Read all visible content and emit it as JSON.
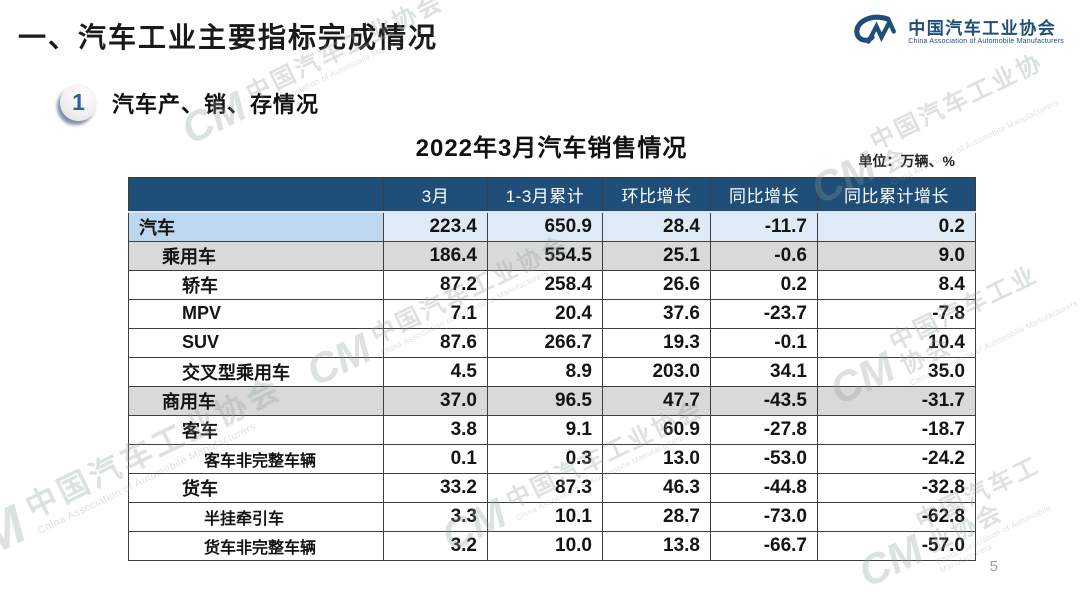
{
  "page": {
    "title": "一、汽车工业主要指标完成情况",
    "page_number": "5"
  },
  "logo": {
    "mark": "CM",
    "name_cn": "中国汽车工业协会",
    "name_en": "China Association of Automobile Manufacturers"
  },
  "section": {
    "number": "1",
    "label": "汽车产、销、存情况"
  },
  "table": {
    "title": "2022年3月汽车销售情况",
    "unit_note": "单位：万辆、%",
    "columns": [
      "",
      "3月",
      "1-3月累计",
      "环比增长",
      "同比增长",
      "同比累计增长"
    ],
    "rows": [
      {
        "label": "汽车",
        "indent": 0,
        "style": "blue",
        "values": [
          "223.4",
          "650.9",
          "28.4",
          "-11.7",
          "0.2"
        ]
      },
      {
        "label": "乘用车",
        "indent": 1,
        "style": "gray",
        "values": [
          "186.4",
          "554.5",
          "25.1",
          "-0.6",
          "9.0"
        ]
      },
      {
        "label": "轿车",
        "indent": 2,
        "style": "white",
        "values": [
          "87.2",
          "258.4",
          "26.6",
          "0.2",
          "8.4"
        ]
      },
      {
        "label": "MPV",
        "indent": 2,
        "style": "white",
        "values": [
          "7.1",
          "20.4",
          "37.6",
          "-23.7",
          "-7.8"
        ]
      },
      {
        "label": "SUV",
        "indent": 2,
        "style": "white",
        "values": [
          "87.6",
          "266.7",
          "19.3",
          "-0.1",
          "10.4"
        ]
      },
      {
        "label": "交叉型乘用车",
        "indent": 2,
        "style": "white",
        "values": [
          "4.5",
          "8.9",
          "203.0",
          "34.1",
          "35.0"
        ]
      },
      {
        "label": "商用车",
        "indent": 1,
        "style": "gray",
        "values": [
          "37.0",
          "96.5",
          "47.7",
          "-43.5",
          "-31.7"
        ]
      },
      {
        "label": "客车",
        "indent": 2,
        "style": "white",
        "values": [
          "3.8",
          "9.1",
          "60.9",
          "-27.8",
          "-18.7"
        ]
      },
      {
        "label": "客车非完整车辆",
        "indent": 3,
        "style": "white",
        "values": [
          "0.1",
          "0.3",
          "13.0",
          "-53.0",
          "-24.2"
        ]
      },
      {
        "label": "货车",
        "indent": 2,
        "style": "white",
        "values": [
          "33.2",
          "87.3",
          "46.3",
          "-44.8",
          "-32.8"
        ]
      },
      {
        "label": "半挂牵引车",
        "indent": 3,
        "style": "white",
        "values": [
          "3.3",
          "10.1",
          "28.7",
          "-73.0",
          "-62.8"
        ]
      },
      {
        "label": "货车非完整车辆",
        "indent": 3,
        "style": "white",
        "values": [
          "3.2",
          "10.0",
          "13.8",
          "-66.7",
          "-57.0"
        ]
      }
    ]
  },
  "watermark": {
    "mark": "CM",
    "text_cn": "中国汽车工业协会",
    "text_en": "China Association of Automobile Manufacturers"
  },
  "colors": {
    "header_bg": "#1F4E79",
    "brand_blue": "#1F4E79",
    "row_blue_label": "#BDD7EE",
    "row_blue_value": "#DEEBF7",
    "row_gray": "#D9D9D9",
    "badge_digit": "#2E5DA6"
  }
}
